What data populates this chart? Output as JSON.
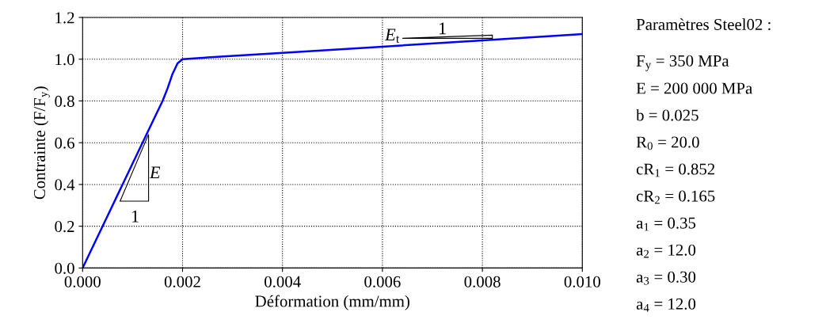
{
  "chart_data": {
    "type": "line",
    "xlabel": "Déformation (mm/mm)",
    "ylabel": "Contrainte (F/F$_{y}$)",
    "x": [
      0,
      0.0005,
      0.001,
      0.0014,
      0.0016,
      0.0017,
      0.0018,
      0.0019,
      0.002,
      0.0025,
      0.004,
      0.006,
      0.008,
      0.01
    ],
    "series": [
      {
        "color": "#0000ff",
        "values": [
          0,
          0.25,
          0.5,
          0.7,
          0.8,
          0.86,
          0.93,
          0.98,
          1.0,
          1.008,
          1.03,
          1.06,
          1.09,
          1.12
        ]
      }
    ],
    "xlim": [
      0,
      0.01
    ],
    "ylim": [
      0,
      1.2
    ],
    "xticks": [
      {
        "value": 0,
        "label": "0.000"
      },
      {
        "value": 0.002,
        "label": "0.002"
      },
      {
        "value": 0.004,
        "label": "0.004"
      },
      {
        "value": 0.006,
        "label": "0.006"
      },
      {
        "value": 0.008,
        "label": "0.008"
      },
      {
        "value": 0.01,
        "label": "0.010"
      }
    ],
    "yticks": [
      {
        "value": 0,
        "label": "0.0"
      },
      {
        "value": 0.2,
        "label": "0.2"
      },
      {
        "value": 0.4,
        "label": "0.4"
      },
      {
        "value": 0.6,
        "label": "0.6"
      },
      {
        "value": 0.8,
        "label": "0.8"
      },
      {
        "value": 1.0,
        "label": "1.0"
      },
      {
        "value": 1.2,
        "label": "1.2"
      }
    ],
    "grid": true,
    "marker": "none",
    "line_style": "solid",
    "legend": false,
    "annotations": [
      "E",
      "1",
      "E$_{t}$",
      "1",
      "Paramètres Steel02 :",
      "F$_{y}$ = 350 MPa",
      "E = 200 000 MPa",
      "b = 0.025",
      "R$_{0}$ = 20.0",
      "cR$_{1}$ = 0.852",
      "cR$_{2}$ = 0.165",
      "a$_{1}$ = 0.35",
      "a$_{2}$ = 12.0",
      "a$_{3}$ = 0.30",
      "a$_{4}$ = 12.0"
    ]
  }
}
